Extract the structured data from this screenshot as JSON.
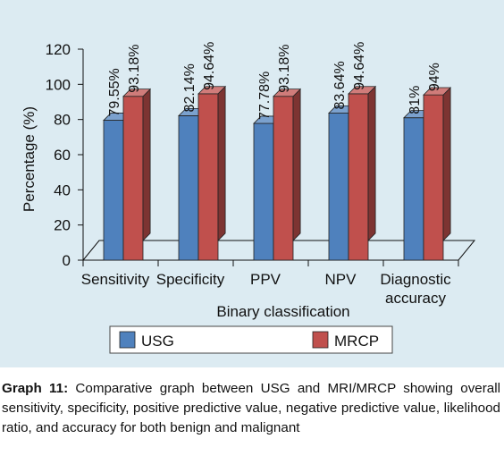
{
  "chart_data": {
    "type": "bar",
    "style": "3d",
    "title": "",
    "xlabel": "Binary classification",
    "ylabel": "Percentage (%)",
    "ylim": [
      0,
      120
    ],
    "yticks": [
      0,
      20,
      40,
      60,
      80,
      100,
      120
    ],
    "grid": false,
    "legend_position": "bottom",
    "categories": [
      "Sensitivity",
      "Specificity",
      "PPV",
      "NPV",
      "Diagnostic accuracy"
    ],
    "category_labels": [
      [
        "Sensitivity"
      ],
      [
        "Specificity"
      ],
      [
        "PPV"
      ],
      [
        "NPV"
      ],
      [
        "Diagnostic",
        "accuracy"
      ]
    ],
    "series": [
      {
        "name": "USG",
        "values": [
          79.55,
          82.14,
          77.78,
          83.64,
          81
        ],
        "labels": [
          "79.55%",
          "82.14%",
          "77.78%",
          "83.64%",
          "81%"
        ],
        "color": "#4f81bd"
      },
      {
        "name": "MRCP",
        "values": [
          93.18,
          94.64,
          93.18,
          94.64,
          94
        ],
        "labels": [
          "93.18%",
          "94.64%",
          "93.18%",
          "94.64%",
          "94%"
        ],
        "color": "#c0504d"
      }
    ]
  },
  "caption": {
    "lead": "Graph 11:",
    "text": " Comparative graph between USG and MRI/MRCP showing overall sensitivity, specificity, positive predictive value, negative predictive value, likelihood ratio, and accuracy for both benign and malignant"
  }
}
